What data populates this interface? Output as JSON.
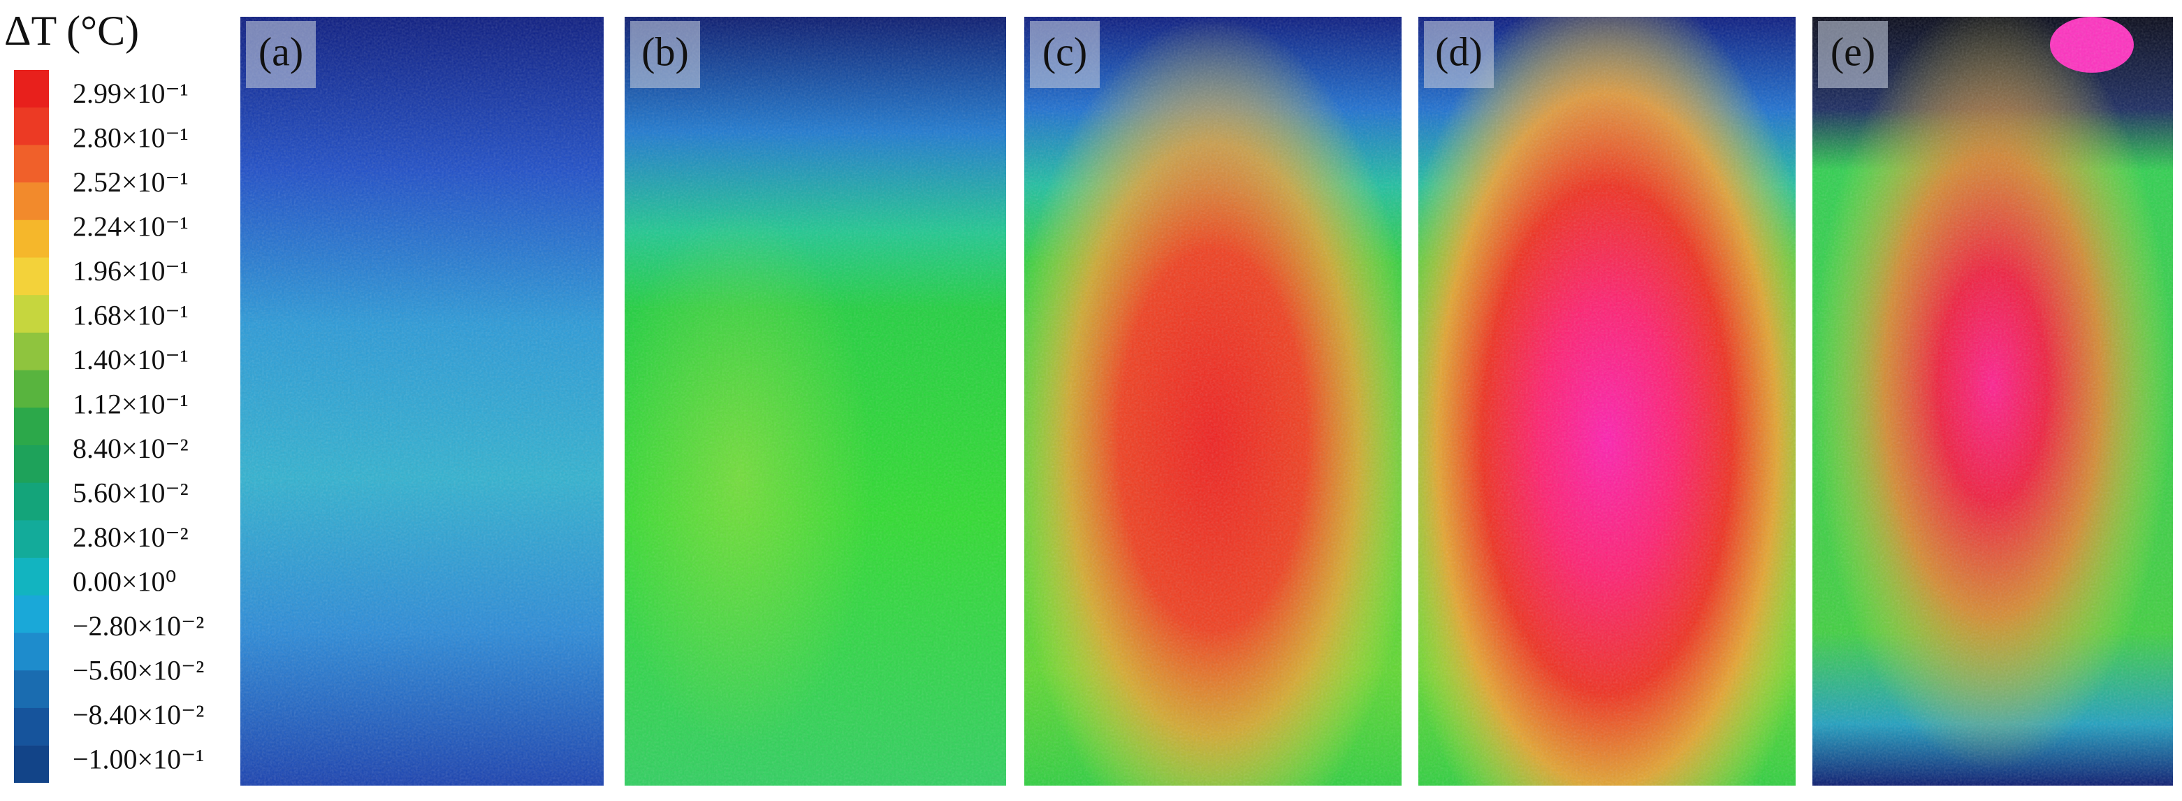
{
  "colorbar": {
    "title": "ΔT (°C)",
    "labels": [
      "2.99×10⁻¹",
      "2.80×10⁻¹",
      "2.52×10⁻¹",
      "2.24×10⁻¹",
      "1.96×10⁻¹",
      "1.68×10⁻¹",
      "1.40×10⁻¹",
      "1.12×10⁻¹",
      "8.40×10⁻²",
      "5.60×10⁻²",
      "2.80×10⁻²",
      "0.00×10⁰",
      "−2.80×10⁻²",
      "−5.60×10⁻²",
      "−8.40×10⁻²",
      "−1.00×10⁻¹"
    ]
  },
  "panels": [
    "(a)",
    "(b)",
    "(c)",
    "(d)",
    "(e)"
  ]
}
